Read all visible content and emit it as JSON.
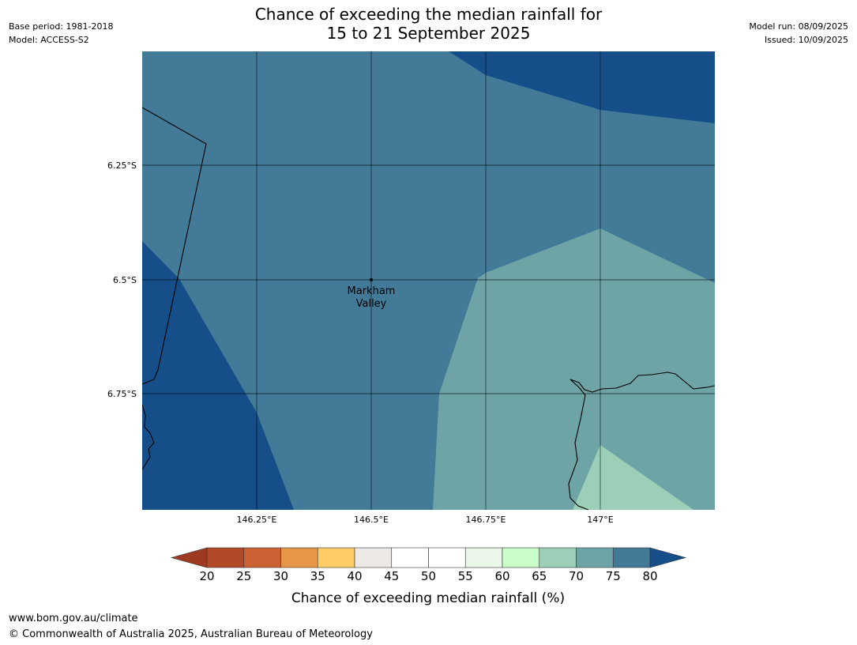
{
  "title": {
    "line1": "Chance of exceeding the median rainfall for",
    "line2": "15 to 21 September 2025"
  },
  "meta_left": {
    "base_period": "Base period: 1981-2018",
    "model": "Model: ACCESS-S2"
  },
  "meta_right": {
    "model_run": "Model run: 08/09/2025",
    "issued": "Issued: 10/09/2025"
  },
  "map": {
    "lat_labels": [
      "6.25°S",
      "6.5°S",
      "6.75°S"
    ],
    "lon_labels": [
      "146.25°E",
      "146.5°E",
      "146.75°E",
      "147°E"
    ],
    "place": {
      "line1": "Markham",
      "line2": "Valley"
    },
    "zone_colors": {
      "above_80": "#154e88",
      "band_75_80": "#427a98",
      "band_70_75": "#6fa4a7",
      "band_65_70": "#9ccfb8"
    }
  },
  "legend": {
    "title": "Chance of exceeding median rainfall (%)",
    "ticks": [
      "20",
      "25",
      "30",
      "35",
      "40",
      "45",
      "50",
      "55",
      "60",
      "65",
      "70",
      "75",
      "80"
    ],
    "low_color": "#9e3a22",
    "colors": [
      "#b24a27",
      "#cd6133",
      "#e59646",
      "#ffcc66",
      "#ede9e6",
      "#ffffff",
      "#ffffff",
      "#e9f6e9",
      "#c9fdc9",
      "#9ccfb8",
      "#6fa4a7",
      "#427a98"
    ],
    "high_color": "#154e88"
  },
  "footer": {
    "url": "www.bom.gov.au/climate",
    "copyright": "© Commonwealth of Australia 2025, Australian Bureau of Meteorology"
  }
}
